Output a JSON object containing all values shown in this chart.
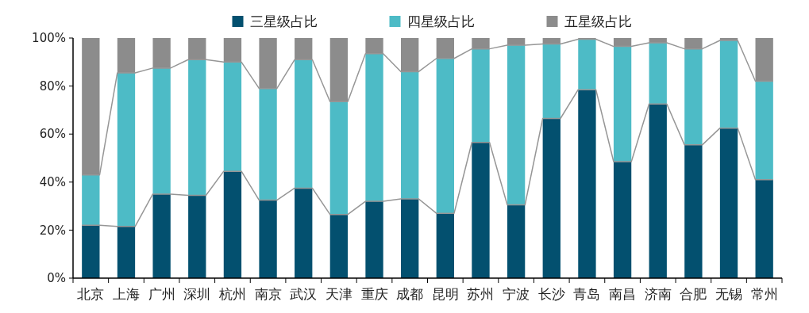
{
  "chart_data": {
    "type": "bar",
    "stacked": true,
    "categories": [
      "北京",
      "上海",
      "广州",
      "深圳",
      "杭州",
      "南京",
      "武汉",
      "天津",
      "重庆",
      "成都",
      "昆明",
      "苏州",
      "宁波",
      "长沙",
      "青岛",
      "南昌",
      "济南",
      "合肥",
      "无锡",
      "常州"
    ],
    "series": [
      {
        "name": "三星级占比",
        "color": "#03506f",
        "values": [
          22,
          21.5,
          35,
          34.5,
          44.5,
          32.5,
          37.5,
          26.5,
          32,
          33,
          27,
          56.5,
          30.5,
          66.5,
          78.5,
          48.5,
          72.5,
          55.5,
          62.5,
          41
        ]
      },
      {
        "name": "四星级占比",
        "color": "#4dbbc6",
        "values": [
          21,
          64,
          52.5,
          56.5,
          45.5,
          46.5,
          53.5,
          47,
          61.5,
          53,
          64.5,
          39,
          66.5,
          31,
          21,
          48,
          25.5,
          40,
          36.5,
          41
        ]
      },
      {
        "name": "五星级占比",
        "color": "#8c8c8c",
        "values": [
          57,
          14.5,
          12.5,
          9,
          10,
          21,
          9,
          26.5,
          6.5,
          14,
          8.5,
          4.5,
          3,
          2.5,
          0.5,
          3.5,
          2,
          4.5,
          1,
          18
        ]
      }
    ],
    "ylim": [
      0,
      100
    ],
    "yticks": [
      {
        "value": 0,
        "label": "0%"
      },
      {
        "value": 20,
        "label": "20%"
      },
      {
        "value": 40,
        "label": "40%"
      },
      {
        "value": 60,
        "label": "60%"
      },
      {
        "value": 80,
        "label": "80%"
      },
      {
        "value": 100,
        "label": "100%"
      }
    ],
    "grid": false,
    "legend": "top"
  }
}
